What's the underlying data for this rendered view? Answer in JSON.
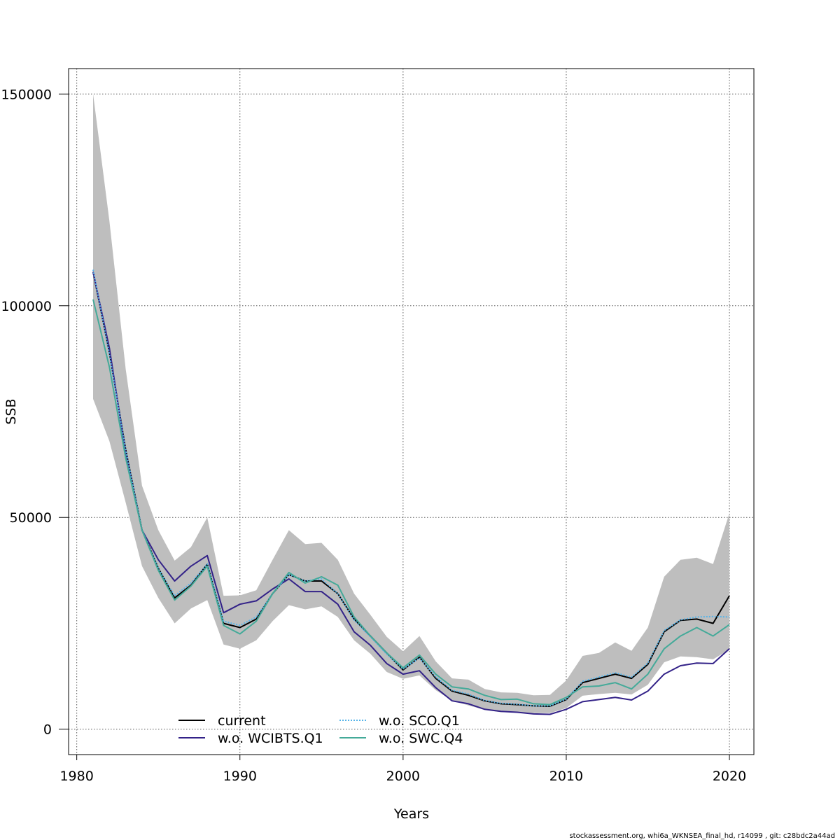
{
  "chart_data": {
    "type": "line",
    "xlabel": "Years",
    "ylabel": "SSB",
    "xlim": [
      1979.5,
      2021.5
    ],
    "ylim": [
      -6000,
      156000
    ],
    "x_ticks": [
      1980,
      1990,
      2000,
      2010,
      2020
    ],
    "y_ticks": [
      0,
      50000,
      100000,
      150000
    ],
    "x_tick_labels": [
      "1980",
      "1990",
      "2000",
      "2010",
      "2020"
    ],
    "y_tick_labels": [
      "0",
      "50000",
      "100000",
      "150000"
    ],
    "grid": true,
    "legend_position": "bottom-left",
    "x": [
      1981,
      1982,
      1983,
      1984,
      1985,
      1986,
      1987,
      1988,
      1989,
      1990,
      1991,
      1992,
      1993,
      1994,
      1995,
      1996,
      1997,
      1998,
      1999,
      2000,
      2001,
      2002,
      2003,
      2004,
      2005,
      2006,
      2007,
      2008,
      2009,
      2010,
      2011,
      2012,
      2013,
      2014,
      2015,
      2016,
      2017,
      2018,
      2019,
      2020
    ],
    "confidence_band": {
      "color": "#bebebe",
      "upper": [
        150000,
        120000,
        85000,
        57500,
        47000,
        39800,
        43000,
        50000,
        31500,
        31600,
        32800,
        40000,
        47000,
        43700,
        44000,
        40000,
        32000,
        27000,
        21800,
        18400,
        22000,
        16000,
        12000,
        11700,
        9500,
        8700,
        8600,
        8000,
        8100,
        11500,
        17300,
        18000,
        20500,
        18500,
        24000,
        36000,
        40000,
        40500,
        39000,
        51000
      ],
      "lower": [
        78000,
        68000,
        53500,
        38500,
        31000,
        25000,
        28500,
        30500,
        20000,
        19000,
        21000,
        25500,
        29300,
        28300,
        29000,
        26500,
        21000,
        17800,
        13500,
        11900,
        12700,
        9200,
        6800,
        5600,
        4600,
        4000,
        4000,
        3800,
        3800,
        5000,
        7900,
        8300,
        8600,
        8200,
        10500,
        15800,
        17200,
        17000,
        16500,
        18800
      ]
    },
    "series": [
      {
        "name": "current",
        "color": "#000000",
        "dash": "solid",
        "values": [
          108000,
          89000,
          66000,
          47000,
          38000,
          31000,
          34000,
          39000,
          25000,
          24000,
          26000,
          32000,
          36500,
          35000,
          35000,
          32000,
          26000,
          22000,
          18000,
          14000,
          17000,
          12000,
          9000,
          8000,
          6700,
          6000,
          5800,
          5500,
          5400,
          7000,
          11000,
          12000,
          13000,
          12000,
          15300,
          23000,
          25700,
          26000,
          25000,
          31500
        ]
      },
      {
        "name": "w.o. WCIBTS.Q1",
        "color": "#332288",
        "dash": "solid",
        "values": [
          108000,
          90000,
          65000,
          47000,
          40000,
          35000,
          38500,
          41000,
          27500,
          29500,
          30300,
          33100,
          35500,
          32500,
          32500,
          29500,
          23000,
          19800,
          15500,
          13000,
          13800,
          9800,
          6700,
          6000,
          4700,
          4200,
          4000,
          3600,
          3500,
          4700,
          6500,
          7000,
          7500,
          6900,
          9000,
          13000,
          15000,
          15600,
          15500,
          19000
        ]
      },
      {
        "name": "w.o. SCO.Q1",
        "color": "#56b4e9",
        "dash": "dotted",
        "values": [
          108500,
          88500,
          66000,
          47000,
          38000,
          31500,
          34500,
          39000,
          25500,
          24500,
          26500,
          32000,
          36500,
          35000,
          35500,
          32000,
          25800,
          21800,
          17700,
          14200,
          16800,
          12300,
          9200,
          8300,
          6800,
          6100,
          5900,
          5500,
          5500,
          7100,
          11300,
          12300,
          13300,
          12300,
          15600,
          23300,
          25800,
          26500,
          26600,
          26500
        ]
      },
      {
        "name": "w.o. SWC.Q4",
        "color": "#44aa99",
        "dash": "solid",
        "values": [
          101500,
          85500,
          64000,
          47000,
          37500,
          30500,
          33800,
          38500,
          24500,
          22500,
          25500,
          32000,
          37000,
          34500,
          36000,
          34000,
          26500,
          22000,
          18000,
          14500,
          17500,
          13000,
          10000,
          9500,
          8000,
          7000,
          7100,
          6000,
          5800,
          7500,
          10000,
          10200,
          11000,
          9500,
          13000,
          19000,
          22000,
          24000,
          22000,
          24700
        ]
      }
    ],
    "legend": [
      {
        "label": "current",
        "series_index": 0
      },
      {
        "label": "w.o. WCIBTS.Q1",
        "series_index": 1
      },
      {
        "label": "w.o. SCO.Q1",
        "series_index": 2
      },
      {
        "label": "w.o. SWC.Q4",
        "series_index": 3
      }
    ]
  },
  "footer_text": "stockassessment.org, whi6a_WKNSEA_final_hd, r14099 , git: c28bdc2a44ad"
}
